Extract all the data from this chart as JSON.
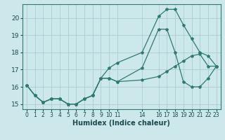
{
  "xlabel": "Humidex (Indice chaleur)",
  "bg_color": "#cde8eb",
  "grid_color": "#b0d0d4",
  "line_color": "#2d7a6e",
  "xlim": [
    -0.5,
    23.5
  ],
  "ylim": [
    14.7,
    20.8
  ],
  "yticks": [
    15,
    16,
    17,
    18,
    19,
    20
  ],
  "xtick_positions": [
    0,
    1,
    2,
    3,
    4,
    5,
    6,
    7,
    8,
    9,
    10,
    11,
    14,
    16,
    17,
    18,
    19,
    20,
    21,
    22,
    23
  ],
  "xtick_labels": [
    "0",
    "1",
    "2",
    "3",
    "4",
    "5",
    "6",
    "7",
    "8",
    "9",
    "10",
    "11",
    "14",
    "16",
    "17",
    "18",
    "19",
    "20",
    "21",
    "22",
    "23"
  ],
  "line1_x": [
    0,
    1,
    2,
    3,
    4,
    5,
    6,
    7,
    8,
    9,
    10,
    11,
    14,
    16,
    17,
    18,
    19,
    20,
    21,
    22,
    23
  ],
  "line1_y": [
    16.1,
    15.5,
    15.1,
    15.3,
    15.3,
    15.0,
    15.0,
    15.3,
    15.5,
    16.5,
    16.5,
    16.3,
    16.4,
    16.6,
    16.9,
    17.2,
    17.5,
    17.8,
    17.9,
    17.2,
    17.2
  ],
  "line2_x": [
    0,
    1,
    2,
    3,
    4,
    5,
    6,
    7,
    8,
    9,
    10,
    11,
    14,
    16,
    17,
    18,
    19,
    20,
    21,
    22,
    23
  ],
  "line2_y": [
    16.1,
    15.5,
    15.1,
    15.3,
    15.3,
    15.0,
    15.0,
    15.3,
    15.5,
    16.5,
    17.1,
    17.4,
    18.0,
    20.1,
    20.5,
    20.5,
    19.6,
    18.8,
    18.0,
    17.8,
    17.2
  ],
  "line3_x": [
    0,
    1,
    2,
    3,
    4,
    5,
    6,
    7,
    8,
    9,
    10,
    11,
    14,
    16,
    17,
    18,
    19,
    20,
    21,
    22,
    23
  ],
  "line3_y": [
    16.1,
    15.5,
    15.1,
    15.3,
    15.3,
    15.0,
    15.0,
    15.3,
    15.5,
    16.5,
    16.5,
    16.3,
    17.1,
    19.35,
    19.35,
    18.0,
    16.3,
    16.0,
    16.0,
    16.5,
    17.2
  ]
}
